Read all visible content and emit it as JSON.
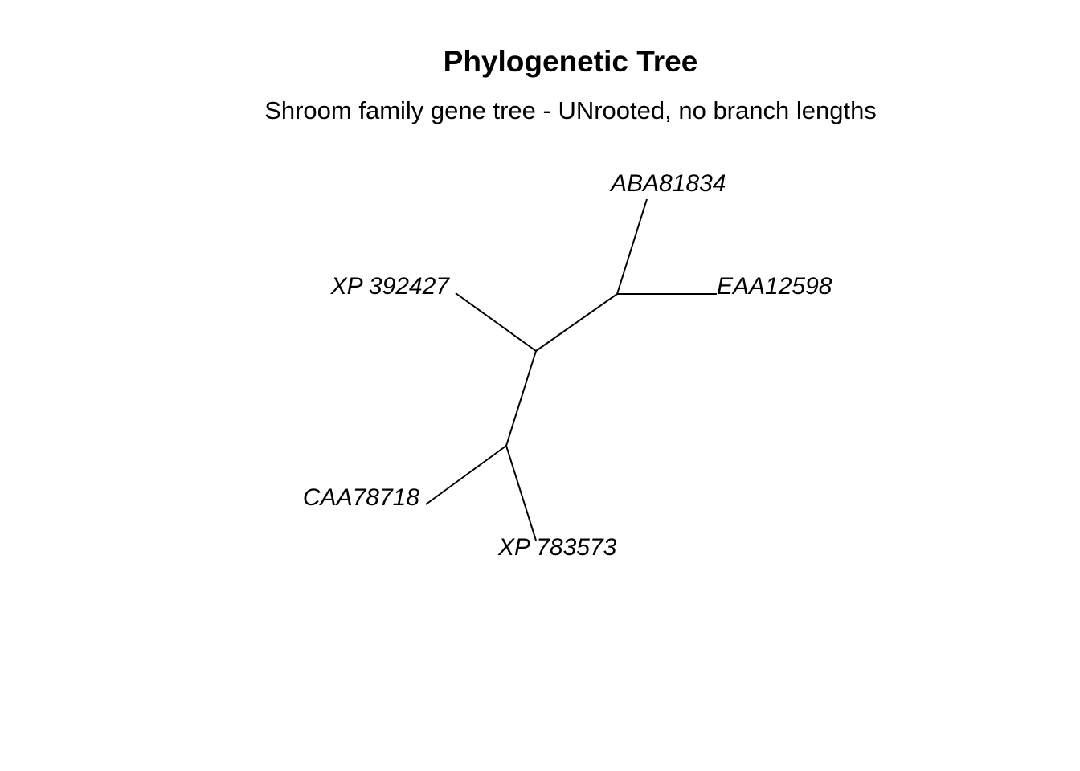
{
  "title": "Phylogenetic Tree",
  "subtitle": "Shroom family gene tree - UNrooted, no branch lengths",
  "tree": {
    "type": "unrooted",
    "branch_lengths": false,
    "tips": [
      {
        "id": "ABA81834",
        "label": "ABA81834"
      },
      {
        "id": "EAA12598",
        "label": "EAA12598"
      },
      {
        "id": "XP_392427",
        "label": "XP 392427"
      },
      {
        "id": "CAA78718",
        "label": "CAA78718"
      },
      {
        "id": "XP_783573",
        "label": "XP 783573"
      }
    ],
    "topology": "((ABA81834,EAA12598),XP_392427,(CAA78718,XP_783573));"
  }
}
